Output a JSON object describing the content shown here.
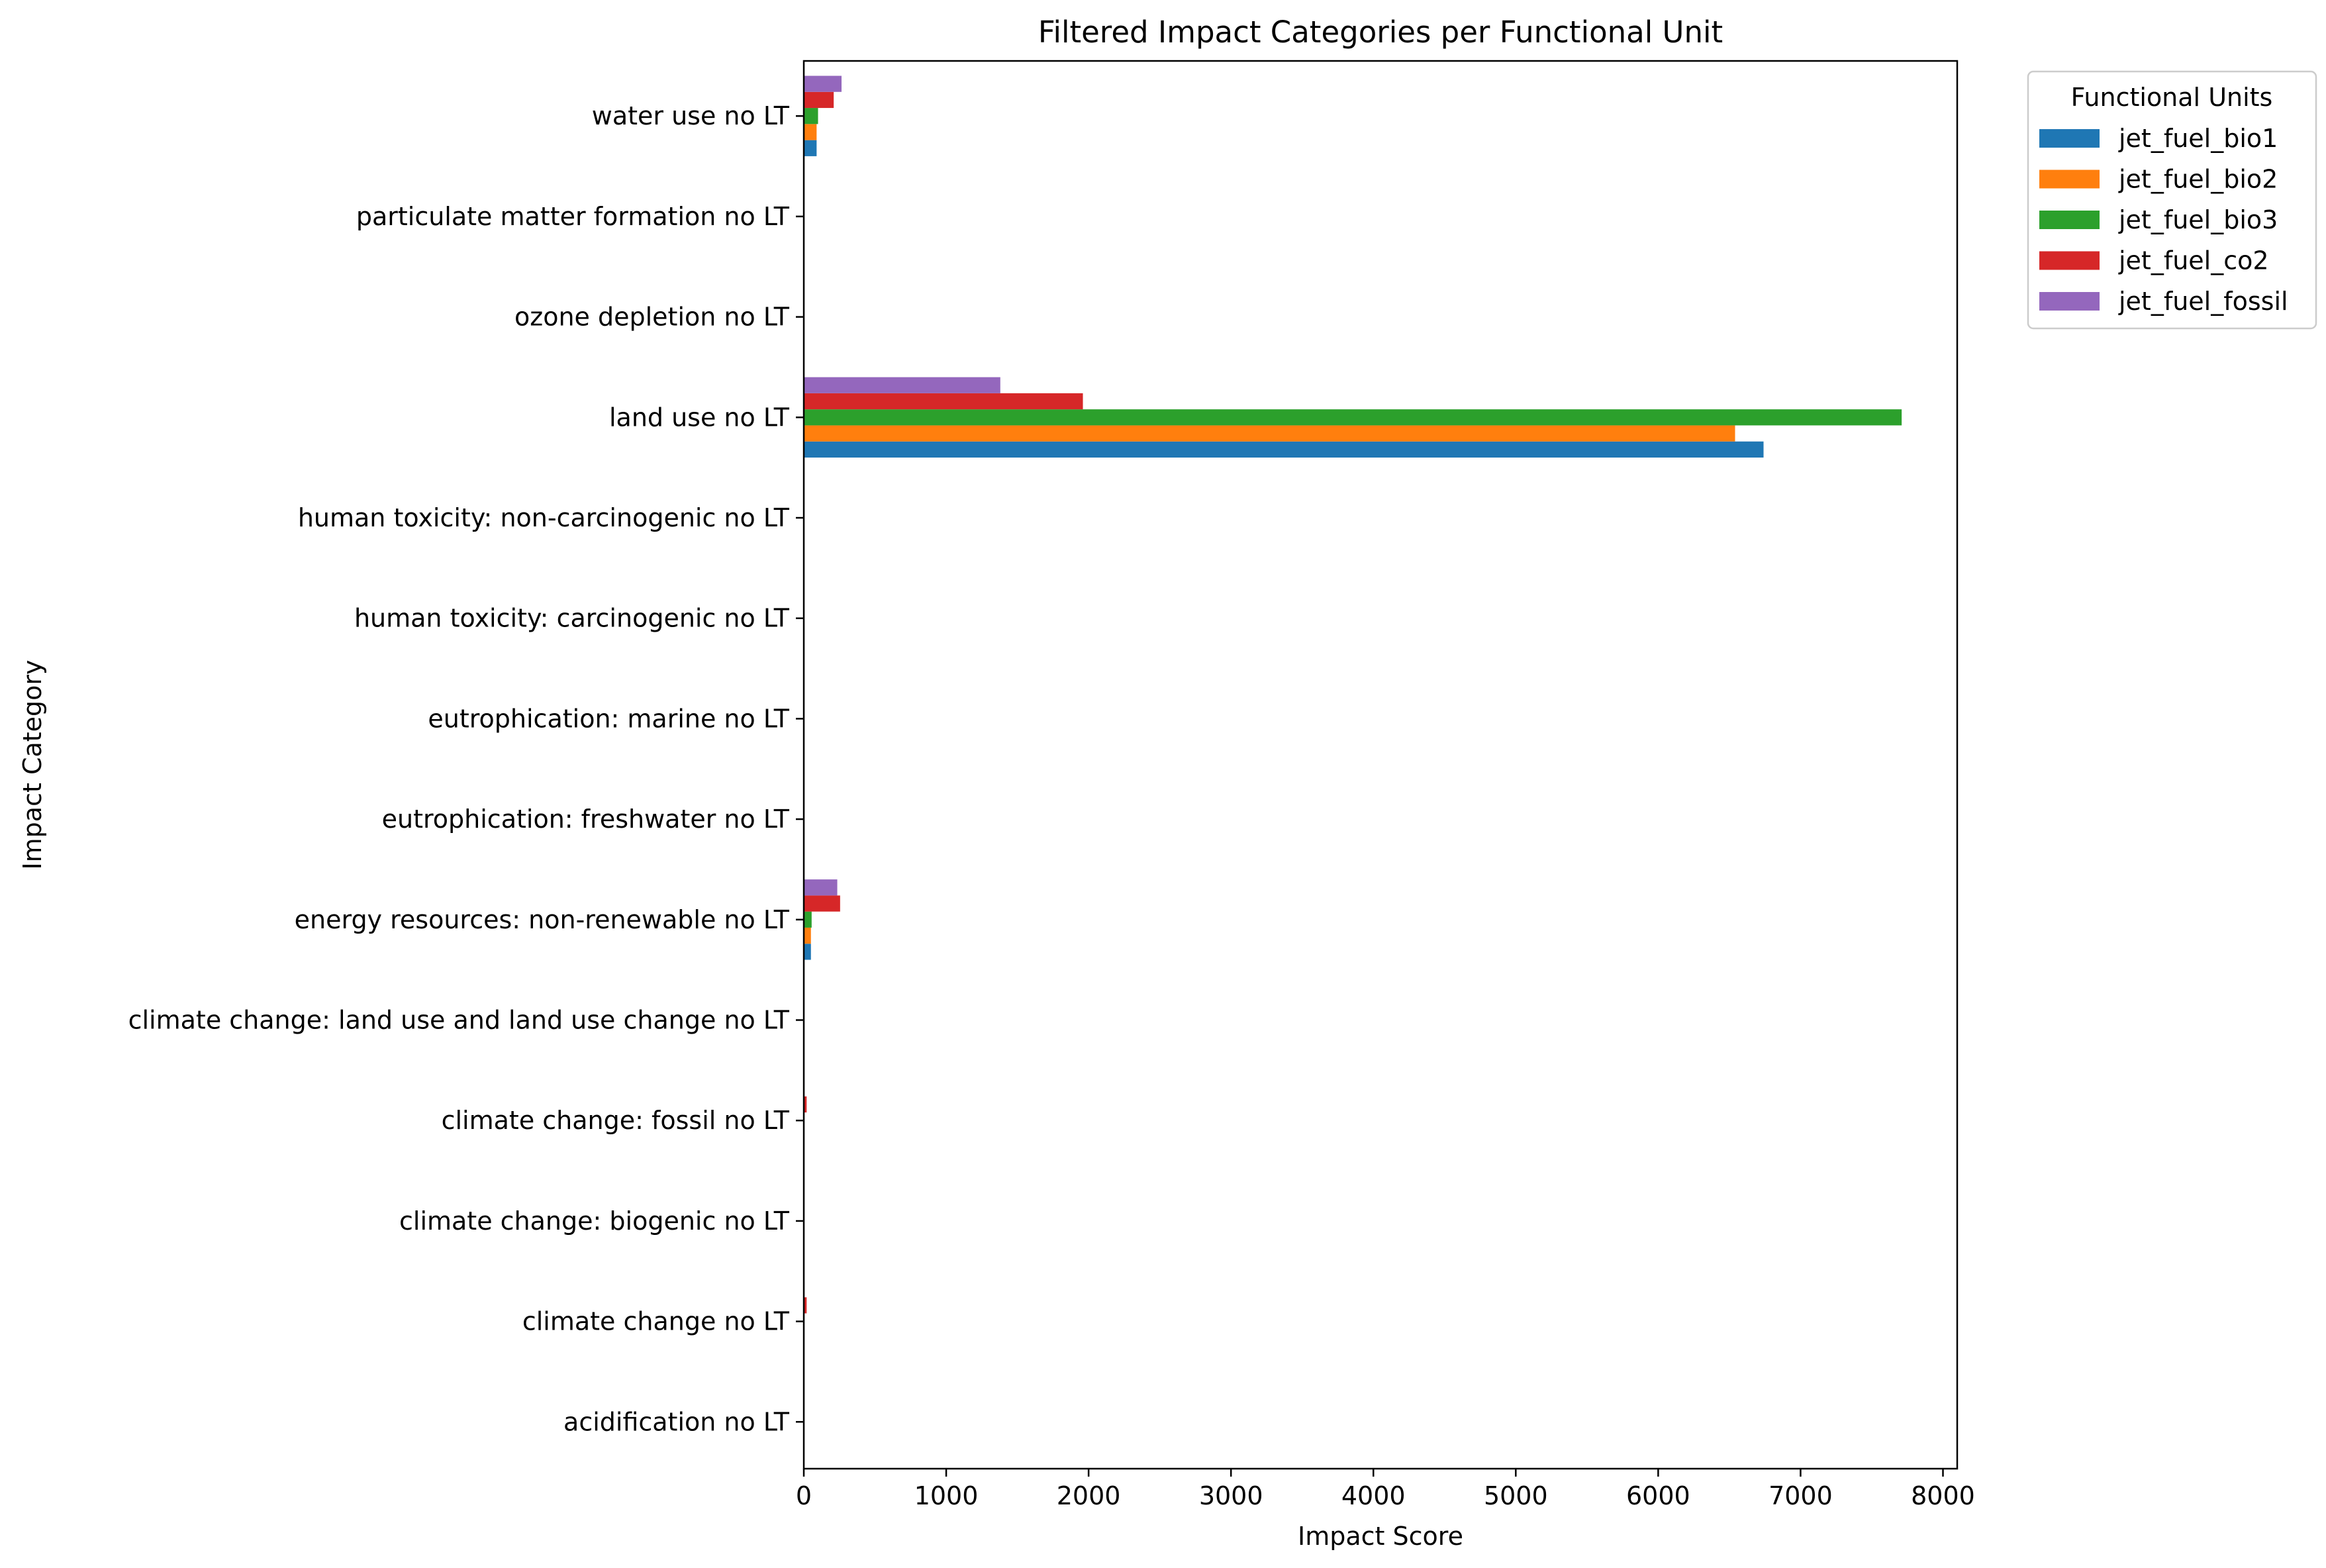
{
  "chart_data": {
    "type": "bar",
    "orientation": "horizontal",
    "title": "Filtered Impact Categories per Functional Unit",
    "xlabel": "Impact Score",
    "ylabel": "Impact Category",
    "xlim": [
      0,
      8100
    ],
    "xticks": [
      0,
      1000,
      2000,
      3000,
      4000,
      5000,
      6000,
      7000,
      8000
    ],
    "grid": false,
    "legend": {
      "title": "Functional Units",
      "placement": "outside top-right"
    },
    "categories": [
      "acidification no LT",
      "climate change no LT",
      "climate change: biogenic no LT",
      "climate change: fossil no LT",
      "climate change: land use and land use change no LT",
      "energy resources: non-renewable no LT",
      "eutrophication: freshwater no LT",
      "eutrophication: marine no LT",
      "human toxicity: carcinogenic no LT",
      "human toxicity: non-carcinogenic no LT",
      "land use no LT",
      "ozone depletion no LT",
      "particulate matter formation no LT",
      "water use no LT"
    ],
    "series": [
      {
        "name": "jet_fuel_bio1",
        "color": "#1f77b4",
        "values": [
          0.02,
          3,
          0.1,
          2,
          1,
          50,
          0.001,
          0.01,
          0.001,
          0.01,
          6740,
          0.0001,
          0.01,
          90
        ]
      },
      {
        "name": "jet_fuel_bio2",
        "color": "#ff7f0e",
        "values": [
          0.02,
          3,
          0.1,
          2,
          1,
          50,
          0.001,
          0.01,
          0.001,
          0.01,
          6540,
          0.0001,
          0.01,
          90
        ]
      },
      {
        "name": "jet_fuel_bio3",
        "color": "#2ca02c",
        "values": [
          0.02,
          3,
          0.1,
          2,
          1,
          55,
          0.001,
          0.01,
          0.001,
          0.01,
          7710,
          0.0001,
          0.01,
          100
        ]
      },
      {
        "name": "jet_fuel_co2",
        "color": "#d62728",
        "values": [
          0.03,
          20,
          0.1,
          20,
          1,
          255,
          0.001,
          0.01,
          0.001,
          0.01,
          1960,
          0.0001,
          0.01,
          210
        ]
      },
      {
        "name": "jet_fuel_fossil",
        "color": "#9467bd",
        "values": [
          0.01,
          5,
          0.1,
          5,
          0.5,
          235,
          0.001,
          0.01,
          0.001,
          0.01,
          1380,
          0.0001,
          0.01,
          265
        ]
      }
    ]
  }
}
